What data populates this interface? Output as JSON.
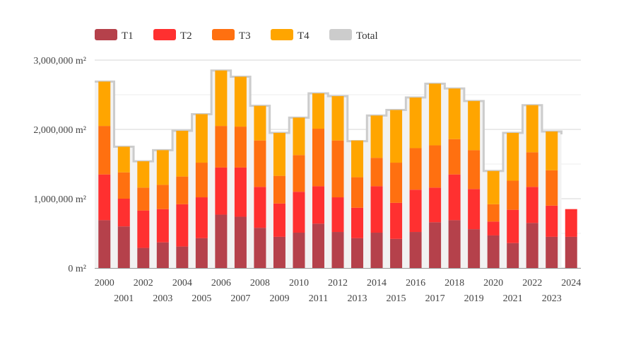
{
  "chart_data": {
    "type": "bar",
    "stacked": true,
    "y_tick_labels": [
      "0 m²",
      "1,000,000 m²",
      "2,000,000 m²",
      "3,000,000 m²"
    ],
    "ylim": [
      0,
      3000000
    ],
    "y_ticks": [
      0,
      1000000,
      2000000,
      3000000
    ],
    "grid": true,
    "legend_placement": "top-left",
    "categories": [
      "2000",
      "2001",
      "2002",
      "2003",
      "2004",
      "2005",
      "2006",
      "2007",
      "2008",
      "2009",
      "2010",
      "2011",
      "2012",
      "2013",
      "2014",
      "2015",
      "2016",
      "2017",
      "2018",
      "2019",
      "2020",
      "2021",
      "2022",
      "2023",
      "2024"
    ],
    "series": [
      {
        "name": "T1",
        "color": "#b5414b",
        "values": [
          690000,
          600000,
          290000,
          370000,
          310000,
          430000,
          770000,
          740000,
          580000,
          450000,
          510000,
          640000,
          520000,
          430000,
          510000,
          420000,
          520000,
          660000,
          690000,
          560000,
          470000,
          360000,
          650000,
          450000,
          450000
        ]
      },
      {
        "name": "T2",
        "color": "#ff3030",
        "values": [
          660000,
          400000,
          540000,
          480000,
          610000,
          590000,
          680000,
          710000,
          590000,
          480000,
          590000,
          540000,
          500000,
          440000,
          670000,
          520000,
          610000,
          500000,
          660000,
          580000,
          200000,
          480000,
          520000,
          450000,
          400000
        ]
      },
      {
        "name": "T3",
        "color": "#ff7010",
        "values": [
          700000,
          380000,
          330000,
          350000,
          400000,
          500000,
          600000,
          590000,
          670000,
          400000,
          530000,
          830000,
          820000,
          440000,
          410000,
          580000,
          600000,
          610000,
          510000,
          560000,
          250000,
          420000,
          500000,
          510000,
          null
        ]
      },
      {
        "name": "T4",
        "color": "#ffa500",
        "values": [
          640000,
          370000,
          380000,
          500000,
          660000,
          700000,
          800000,
          720000,
          500000,
          620000,
          540000,
          510000,
          640000,
          530000,
          610000,
          760000,
          730000,
          890000,
          730000,
          710000,
          480000,
          690000,
          680000,
          560000,
          null
        ]
      },
      {
        "name": "Total",
        "color": "#cccccc",
        "values": [
          2690000,
          1750000,
          1540000,
          1700000,
          1980000,
          2220000,
          2850000,
          2760000,
          2340000,
          1950000,
          2170000,
          2520000,
          2480000,
          1830000,
          2200000,
          2280000,
          2460000,
          2660000,
          2590000,
          2410000,
          1400000,
          1950000,
          2350000,
          1970000,
          null
        ]
      }
    ]
  }
}
